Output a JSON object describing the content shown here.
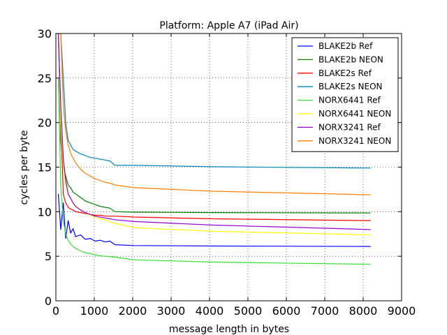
{
  "chart_data": {
    "type": "line",
    "title": "Platform: Apple A7 (iPad Air)",
    "xlabel": "message length in bytes",
    "ylabel": "cycles per byte",
    "xlim": [
      0,
      9000
    ],
    "ylim": [
      0,
      30
    ],
    "xticks": [
      "0",
      "1000",
      "2000",
      "3000",
      "4000",
      "5000",
      "6000",
      "7000",
      "8000",
      "9000"
    ],
    "yticks": [
      "0",
      "5",
      "10",
      "15",
      "20",
      "25",
      "30"
    ],
    "grid": true,
    "legend_position": "top-right",
    "series": [
      {
        "name": "BLAKE2b Ref",
        "color": "#0000ff",
        "x": [
          64,
          128,
          192,
          256,
          320,
          384,
          448,
          512,
          640,
          768,
          896,
          1024,
          1152,
          1280,
          1408,
          1536,
          2048,
          4096,
          8192
        ],
        "y": [
          12,
          8,
          11,
          7,
          9,
          7.6,
          8.1,
          7.2,
          7.4,
          6.9,
          7,
          6.7,
          6.8,
          6.6,
          6.7,
          6.3,
          6.2,
          6.15,
          6.1
        ]
      },
      {
        "name": "BLAKE2b NEON",
        "color": "#008000",
        "x": [
          64,
          128,
          192,
          256,
          320,
          384,
          448,
          512,
          640,
          768,
          896,
          1024,
          1152,
          1280,
          1408,
          1536,
          2048,
          4096,
          8192
        ],
        "y": [
          30,
          18,
          15,
          14,
          13,
          12.7,
          12.2,
          12,
          11.6,
          11.2,
          11,
          10.8,
          10.6,
          10.5,
          10.4,
          10,
          9.95,
          9.9,
          9.85
        ]
      },
      {
        "name": "BLAKE2s Ref",
        "color": "#ff0000",
        "x": [
          64,
          128,
          192,
          256,
          320,
          384,
          448,
          512,
          640,
          768,
          896,
          1024,
          1152,
          1280,
          1408,
          1536,
          2048,
          4096,
          8192
        ],
        "y": [
          30,
          20,
          12,
          11,
          10.5,
          10.3,
          10.2,
          10,
          9.9,
          9.8,
          9.7,
          9.6,
          9.6,
          9.5,
          9.5,
          9.5,
          9.4,
          9.2,
          9
        ]
      },
      {
        "name": "BLAKE2s NEON",
        "color": "#0087bd",
        "x": [
          64,
          128,
          192,
          256,
          320,
          384,
          448,
          512,
          640,
          768,
          896,
          1024,
          1152,
          1280,
          1408,
          1536,
          2048,
          4096,
          8192
        ],
        "y": [
          30,
          30,
          25,
          20,
          18,
          17.5,
          17,
          16.8,
          16.5,
          16.3,
          16.1,
          16,
          15.9,
          15.8,
          15.7,
          15.2,
          15.2,
          15.05,
          14.9
        ]
      },
      {
        "name": "NORX6441 Ref",
        "color": "#33dd33",
        "x": [
          64,
          128,
          192,
          256,
          320,
          384,
          448,
          512,
          640,
          768,
          896,
          1024,
          1152,
          1280,
          1408,
          1536,
          2048,
          4096,
          8192
        ],
        "y": [
          25,
          13,
          9,
          7.5,
          6.8,
          6.4,
          6.1,
          5.9,
          5.6,
          5.4,
          5.3,
          5.15,
          5.05,
          5,
          4.95,
          4.9,
          4.6,
          4.35,
          4.1
        ]
      },
      {
        "name": "NORX6441 NEON",
        "color": "#ffff00",
        "x": [
          64,
          128,
          192,
          256,
          320,
          384,
          448,
          512,
          640,
          768,
          896,
          1024,
          1152,
          1280,
          1408,
          1536,
          2048,
          4096,
          8192
        ],
        "y": [
          30,
          20,
          15,
          13,
          12,
          11.5,
          11,
          10.7,
          10.2,
          9.9,
          9.6,
          9.4,
          9.2,
          9.1,
          8.9,
          8.7,
          8.2,
          7.8,
          7.4
        ]
      },
      {
        "name": "NORX3241 Ref",
        "color": "#9400d3",
        "x": [
          64,
          128,
          192,
          256,
          320,
          384,
          448,
          512,
          640,
          768,
          896,
          1024,
          1152,
          1280,
          1408,
          1536,
          2048,
          4096,
          8192
        ],
        "y": [
          30,
          22,
          16,
          13.5,
          12,
          11.5,
          11,
          10.6,
          10.2,
          9.9,
          9.7,
          9.5,
          9.4,
          9.3,
          9.2,
          9.1,
          8.9,
          8.5,
          8
        ]
      },
      {
        "name": "NORX3241 NEON",
        "color": "#ff7f00",
        "x": [
          64,
          128,
          192,
          256,
          320,
          384,
          448,
          512,
          640,
          768,
          896,
          1024,
          1152,
          1280,
          1408,
          1536,
          2048,
          4096,
          8192
        ],
        "y": [
          30,
          30,
          22,
          19,
          17.5,
          16.6,
          16,
          15.5,
          14.8,
          14.3,
          14,
          13.7,
          13.5,
          13.3,
          13.2,
          13,
          12.7,
          12.3,
          11.9
        ]
      }
    ]
  }
}
